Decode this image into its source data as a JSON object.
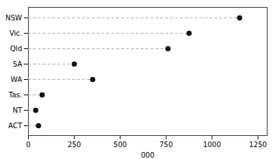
{
  "chart_data": {
    "type": "lollipop",
    "orientation": "horizontal",
    "categories": [
      "NSW",
      "Vic.",
      "Qld",
      "SA",
      "WA",
      "Tas.",
      "NT",
      "ACT"
    ],
    "values": [
      1150,
      875,
      760,
      250,
      350,
      75,
      40,
      55
    ],
    "xlabel": "000",
    "xlim": [
      0,
      1300
    ],
    "xticks": [
      0,
      250,
      500,
      750,
      1000,
      1250
    ],
    "color": "#111111",
    "marker": "circle",
    "line_style": "dashed",
    "grid": false
  }
}
